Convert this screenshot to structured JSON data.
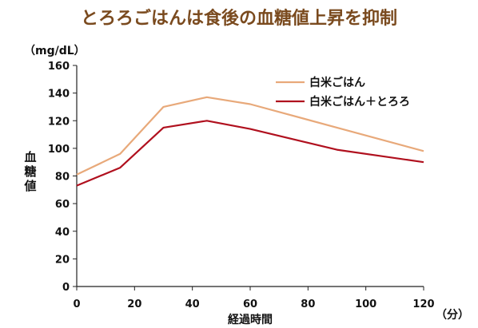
{
  "chart_data": {
    "type": "line",
    "title": "とろろごはんは食後の血糖値上昇を抑制",
    "y_unit": "（mg/dL）",
    "ylabel": "血糖値",
    "xlabel": "経過時間",
    "x_unit": "（分）",
    "ylim": [
      0,
      160
    ],
    "xlim": [
      0,
      120
    ],
    "yticks": [
      0,
      20,
      40,
      60,
      80,
      100,
      120,
      140,
      160
    ],
    "xticks": [
      0,
      20,
      40,
      60,
      80,
      100,
      120
    ],
    "grid": false,
    "legend_position": "top-right",
    "series": [
      {
        "name": "白米ごはん",
        "color": "#e8a97a",
        "x": [
          0,
          15,
          30,
          45,
          60,
          90,
          120
        ],
        "values": [
          81,
          96,
          130,
          137,
          132,
          115,
          98
        ]
      },
      {
        "name": "白米ごはん＋とろろ",
        "color": "#b0101e",
        "x": [
          0,
          15,
          30,
          45,
          60,
          90,
          120
        ],
        "values": [
          73,
          86,
          115,
          120,
          114,
          99,
          90
        ]
      }
    ]
  }
}
